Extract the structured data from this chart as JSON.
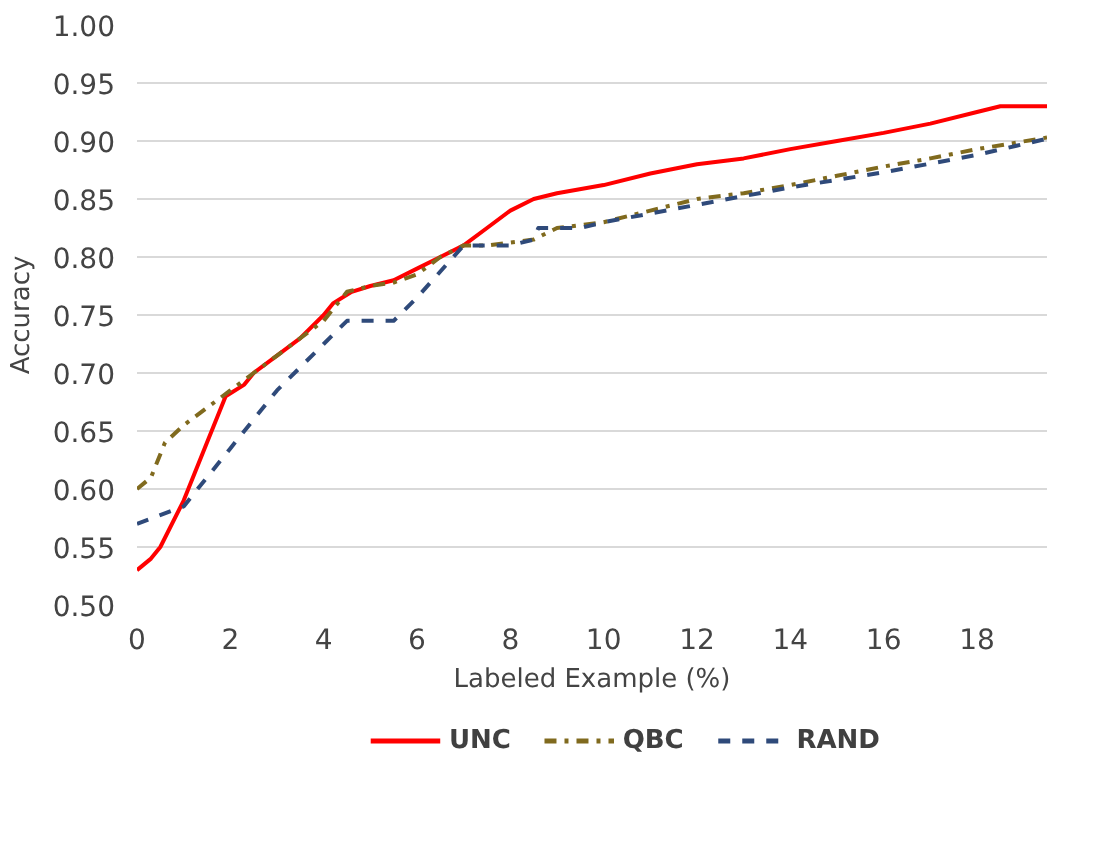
{
  "chart_data": {
    "type": "line",
    "xlabel": "Labeled Example (%)",
    "ylabel": "Accuracy",
    "xlim": [
      0,
      19.5
    ],
    "ylim": [
      0.5,
      1.0
    ],
    "xticks": [
      0,
      2,
      4,
      6,
      8,
      10,
      12,
      14,
      16,
      18
    ],
    "yticks": [
      {
        "value": 0.5,
        "label": "0.50"
      },
      {
        "value": 0.55,
        "label": "0.55"
      },
      {
        "value": 0.6,
        "label": "0.60"
      },
      {
        "value": 0.65,
        "label": "0.65"
      },
      {
        "value": 0.7,
        "label": "0.70"
      },
      {
        "value": 0.75,
        "label": "0.75"
      },
      {
        "value": 0.8,
        "label": "0.80"
      },
      {
        "value": 0.85,
        "label": "0.85"
      },
      {
        "value": 0.9,
        "label": "0.90"
      },
      {
        "value": 0.95,
        "label": "0.95"
      },
      {
        "value": 1.0,
        "label": "1.00"
      }
    ],
    "grid": "y",
    "legend": "bottom",
    "marker": "none",
    "series": [
      {
        "name": "UNC",
        "color": "#ff0000",
        "line_style": "solid",
        "x": [
          0,
          0.3,
          0.5,
          1,
          1.5,
          1.9,
          2.3,
          2.5,
          3,
          3.5,
          4,
          4.2,
          4.6,
          5,
          5.5,
          6,
          6.5,
          7,
          7.5,
          8,
          8.5,
          9,
          10,
          11,
          12,
          13,
          14,
          15,
          16,
          17,
          18,
          18.5,
          19.5
        ],
        "values": [
          0.53,
          0.54,
          0.55,
          0.59,
          0.64,
          0.68,
          0.69,
          0.7,
          0.715,
          0.73,
          0.75,
          0.76,
          0.77,
          0.775,
          0.78,
          0.79,
          0.8,
          0.81,
          0.825,
          0.84,
          0.85,
          0.855,
          0.862,
          0.872,
          0.88,
          0.885,
          0.893,
          0.9,
          0.907,
          0.915,
          0.925,
          0.93,
          0.93
        ]
      },
      {
        "name": "QBC",
        "color": "#806a1e",
        "line_style": "dashdot",
        "x": [
          0,
          0.3,
          0.6,
          1,
          1.5,
          2,
          2.5,
          3,
          3.5,
          4,
          4.5,
          5,
          5.5,
          6,
          6.5,
          7,
          7.5,
          8.5,
          9,
          10,
          11,
          12,
          13,
          14,
          15,
          16,
          17,
          18,
          19.5
        ],
        "values": [
          0.6,
          0.61,
          0.64,
          0.655,
          0.67,
          0.685,
          0.7,
          0.715,
          0.73,
          0.745,
          0.77,
          0.775,
          0.778,
          0.785,
          0.8,
          0.81,
          0.81,
          0.815,
          0.825,
          0.83,
          0.84,
          0.85,
          0.855,
          0.862,
          0.87,
          0.878,
          0.885,
          0.893,
          0.903
        ]
      },
      {
        "name": "RAND",
        "color": "#2f4a7a",
        "line_style": "dashed",
        "x": [
          0,
          1,
          2,
          3,
          4,
          4.5,
          5.5,
          6,
          7,
          8,
          8.5,
          8.6,
          9.5,
          10,
          12,
          14,
          16,
          18,
          19.5
        ],
        "values": [
          0.57,
          0.585,
          0.635,
          0.685,
          0.725,
          0.745,
          0.745,
          0.765,
          0.81,
          0.81,
          0.815,
          0.825,
          0.825,
          0.83,
          0.845,
          0.86,
          0.873,
          0.888,
          0.902
        ]
      }
    ]
  }
}
